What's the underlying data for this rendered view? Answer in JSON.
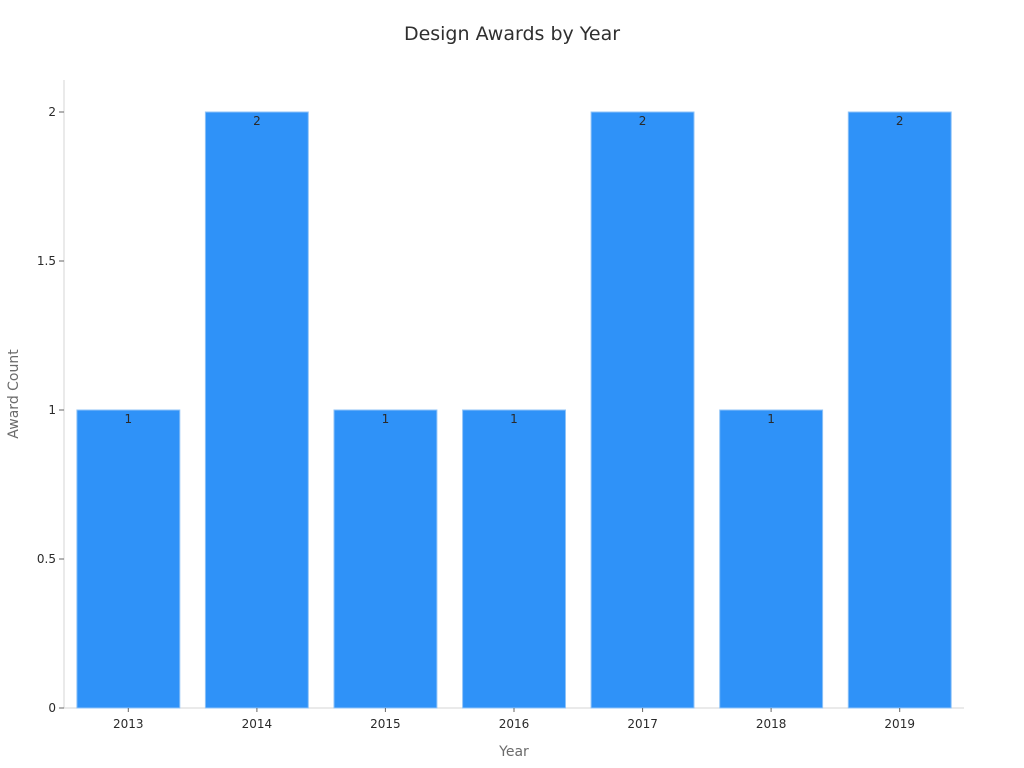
{
  "chart_data": {
    "type": "bar",
    "title": "Design Awards by Year",
    "xlabel": "Year",
    "ylabel": "Award Count",
    "categories": [
      "2013",
      "2014",
      "2015",
      "2016",
      "2017",
      "2018",
      "2019"
    ],
    "values": [
      1,
      2,
      1,
      1,
      2,
      1,
      2
    ],
    "ylim": [
      0,
      2.1
    ],
    "yticks": [
      0,
      0.5,
      1,
      1.5,
      2
    ],
    "ytick_labels": [
      "0",
      "0.5",
      "1",
      "1.5",
      "2"
    ],
    "data_labels": [
      "1",
      "2",
      "1",
      "1",
      "2",
      "1",
      "2"
    ],
    "grid": false,
    "bar_color": "#2f92f8"
  }
}
